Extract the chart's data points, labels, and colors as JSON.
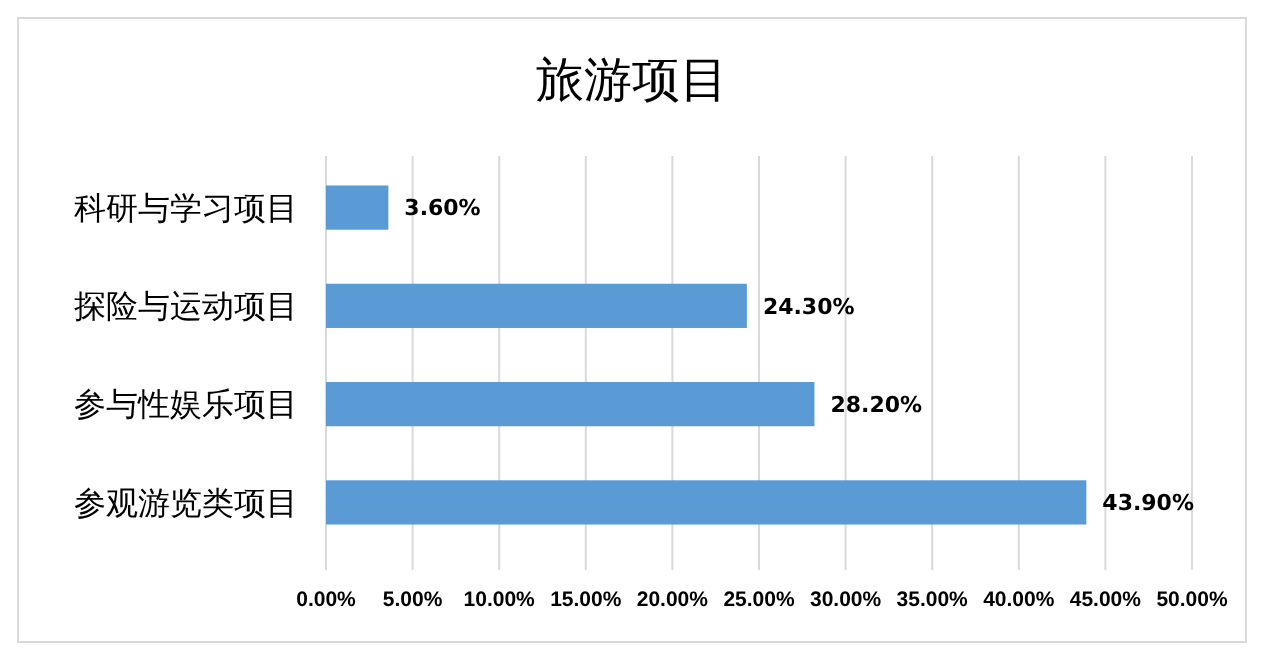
{
  "chart_data": {
    "type": "bar",
    "orientation": "horizontal",
    "title": "旅游项目",
    "categories": [
      "科研与学习项目",
      "探险与运动项目",
      "参与性娱乐项目",
      "参观游览类项目"
    ],
    "values": [
      3.6,
      24.3,
      28.2,
      43.9
    ],
    "value_labels": [
      "3.60%",
      "24.30%",
      "28.20%",
      "43.90%"
    ],
    "color": "#5b9bd5",
    "xlim": [
      0,
      50
    ],
    "xticks": [
      {
        "value": 0,
        "label": "0.00%"
      },
      {
        "value": 5,
        "label": "5.00%"
      },
      {
        "value": 10,
        "label": "10.00%"
      },
      {
        "value": 15,
        "label": "15.00%"
      },
      {
        "value": 20,
        "label": "20.00%"
      },
      {
        "value": 25,
        "label": "25.00%"
      },
      {
        "value": 30,
        "label": "30.00%"
      },
      {
        "value": 35,
        "label": "35.00%"
      },
      {
        "value": 40,
        "label": "40.00%"
      },
      {
        "value": 45,
        "label": "45.00%"
      },
      {
        "value": 50,
        "label": "50.00%"
      }
    ],
    "grid": "x"
  }
}
